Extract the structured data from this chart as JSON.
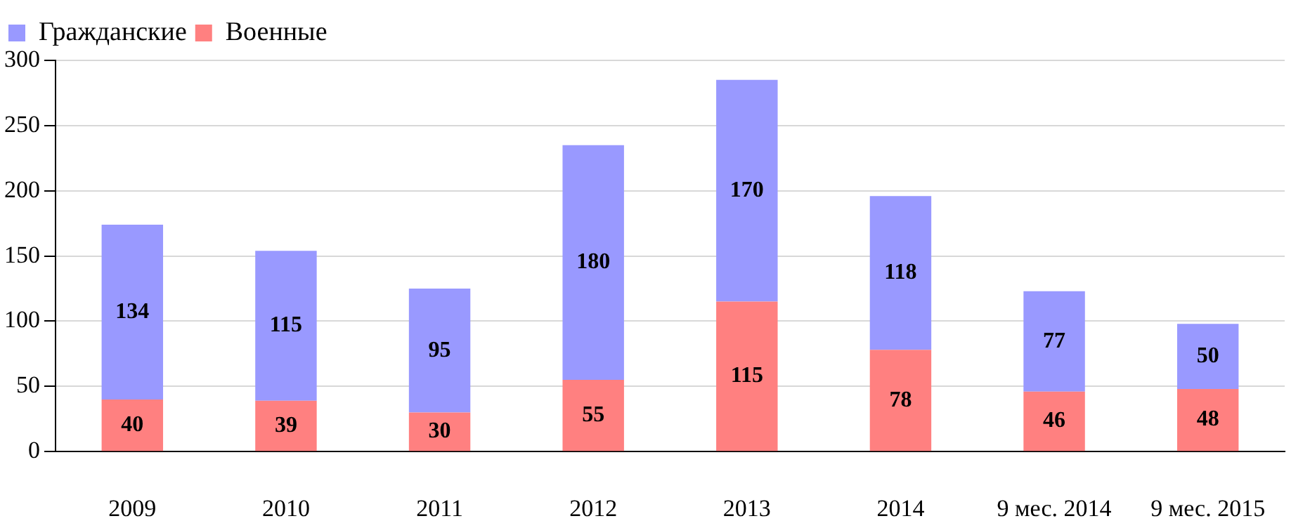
{
  "chart_data": {
    "type": "bar",
    "stacked": true,
    "categories": [
      "2009",
      "2010",
      "2011",
      "2012",
      "2013",
      "2014",
      "9 мес. 2014",
      "9 мес. 2015"
    ],
    "series": [
      {
        "name": "Военные",
        "color": "#ff8080",
        "values": [
          40,
          39,
          30,
          55,
          115,
          78,
          46,
          48
        ]
      },
      {
        "name": "Гражданские",
        "color": "#9999ff",
        "values": [
          134,
          115,
          95,
          180,
          170,
          118,
          77,
          50
        ]
      }
    ],
    "ylim": [
      0,
      300
    ],
    "yticks": [
      0,
      50,
      100,
      150,
      200,
      250,
      300
    ],
    "grid": "y",
    "legend": "top left",
    "data_labels": true
  }
}
